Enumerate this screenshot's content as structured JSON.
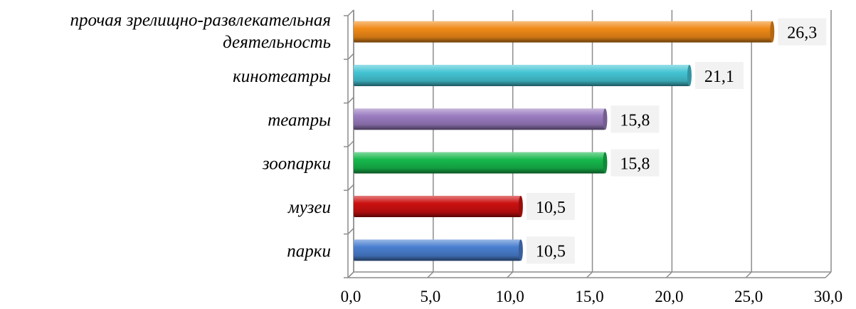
{
  "chart_data": {
    "type": "bar",
    "orientation": "horizontal",
    "categories": [
      "парки",
      "музеи",
      "зоопарки",
      "театры",
      "кинотеатры",
      "прочая зрелищно-развлекательная деятельность"
    ],
    "category_lines": [
      [
        "парки"
      ],
      [
        "музеи"
      ],
      [
        "зоопарки"
      ],
      [
        "театры"
      ],
      [
        "кинотеатры"
      ],
      [
        "прочая зрелищно-развлекательная",
        "деятельность"
      ]
    ],
    "values": [
      10.5,
      10.5,
      15.8,
      15.8,
      21.1,
      26.3
    ],
    "value_labels": [
      "10,5",
      "10,5",
      "15,8",
      "15,8",
      "21,1",
      "26,3"
    ],
    "bar_colors": [
      "#4a7fd0",
      "#cc1010",
      "#16b84c",
      "#9a7cc0",
      "#44c4d4",
      "#f08a18"
    ],
    "xlim": [
      0,
      30
    ],
    "x_ticks": [
      0,
      5,
      10,
      15,
      20,
      25,
      30
    ],
    "x_tick_labels": [
      "0,0",
      "5,0",
      "10,0",
      "15,0",
      "20,0",
      "25,0",
      "30,0"
    ],
    "grid": true,
    "legend": "none",
    "title": "",
    "xlabel": "",
    "ylabel": ""
  }
}
